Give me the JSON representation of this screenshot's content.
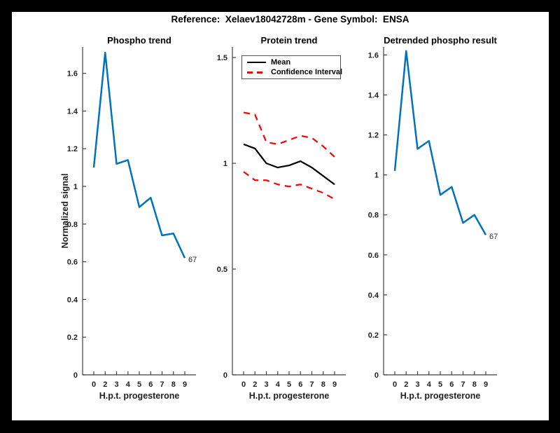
{
  "colors": {
    "page_background": "#000000",
    "figure_background": "#ffffff",
    "axis": "#3f3f3f",
    "line_blue": "#0072bd",
    "line_black": "#000000",
    "line_red": "#ff0000"
  },
  "figure_title": "Reference:  Xelaev18042728m - Gene Symbol:  ENSA",
  "chart_data": [
    {
      "type": "line",
      "title": "Phospho trend",
      "xlabel": "H.p.t. progesterone",
      "ylabel": "Normalized signal",
      "categories": [
        "0",
        "2",
        "3",
        "4",
        "5",
        "6",
        "7",
        "8",
        "9"
      ],
      "ylim": [
        0,
        1.74
      ],
      "yticks": [
        0,
        0.2,
        0.4,
        0.6,
        0.8,
        1,
        1.2,
        1.4,
        1.6
      ],
      "grid": false,
      "series": [
        {
          "name": "Phospho signal",
          "color": "#0072bd",
          "dash": "none",
          "width": 2.5,
          "values": [
            1.1,
            1.71,
            1.12,
            1.14,
            0.89,
            0.94,
            0.74,
            0.75,
            0.62
          ]
        }
      ],
      "annotations": [
        {
          "category_index": 8,
          "value": 0.62,
          "text": "67"
        }
      ]
    },
    {
      "type": "line",
      "title": "Protein trend",
      "xlabel": "H.p.t. progesterone",
      "ylabel": "",
      "categories": [
        "0",
        "2",
        "3",
        "4",
        "5",
        "6",
        "7",
        "8",
        "9"
      ],
      "ylim": [
        0,
        1.55
      ],
      "yticks": [
        0,
        0.5,
        1,
        1.5
      ],
      "grid": false,
      "legend": {
        "position": "top-left",
        "entries": [
          "Mean",
          "Confidence Interval"
        ]
      },
      "series": [
        {
          "name": "Mean",
          "color": "#000000",
          "dash": "none",
          "width": 2.2,
          "values": [
            1.09,
            1.07,
            1.0,
            0.98,
            0.99,
            1.01,
            0.98,
            0.94,
            0.9
          ]
        },
        {
          "name": "Confidence Interval upper",
          "color": "#ff0000",
          "dash": "dashed",
          "width": 2.2,
          "values": [
            1.24,
            1.23,
            1.1,
            1.09,
            1.11,
            1.13,
            1.12,
            1.08,
            1.03
          ]
        },
        {
          "name": "Confidence Interval lower",
          "color": "#ff0000",
          "dash": "dashed",
          "width": 2.2,
          "values": [
            0.96,
            0.92,
            0.92,
            0.9,
            0.89,
            0.9,
            0.88,
            0.86,
            0.83
          ]
        }
      ],
      "annotations": []
    },
    {
      "type": "line",
      "title": "Detrended phospho result",
      "xlabel": "H.p.t. progesterone",
      "ylabel": "",
      "categories": [
        "0",
        "2",
        "3",
        "4",
        "5",
        "6",
        "7",
        "8",
        "9"
      ],
      "ylim": [
        0,
        1.64
      ],
      "yticks": [
        0,
        0.2,
        0.4,
        0.6,
        0.8,
        1,
        1.2,
        1.4,
        1.6
      ],
      "grid": false,
      "series": [
        {
          "name": "Detrended phospho",
          "color": "#0072bd",
          "dash": "none",
          "width": 2.5,
          "values": [
            1.02,
            1.62,
            1.13,
            1.17,
            0.9,
            0.94,
            0.76,
            0.8,
            0.7
          ]
        }
      ],
      "annotations": [
        {
          "category_index": 8,
          "value": 0.7,
          "text": "67"
        }
      ]
    }
  ]
}
